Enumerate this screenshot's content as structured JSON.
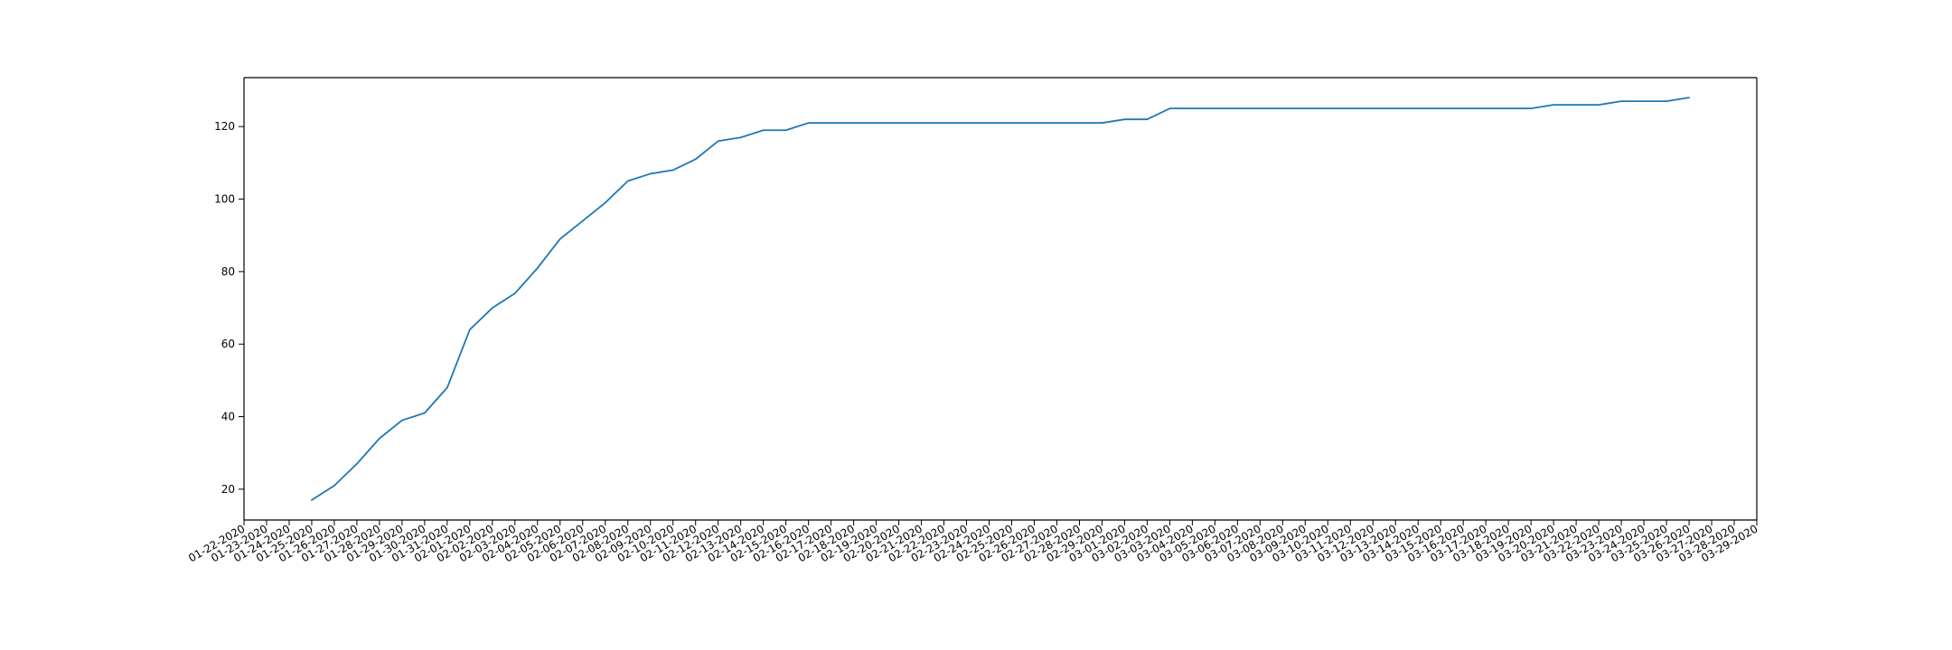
{
  "chart_data": {
    "type": "line",
    "title": "",
    "xlabel": "",
    "ylabel": "",
    "grid": false,
    "x_tick_labels": [
      "01-22-2020",
      "01-23-2020",
      "01-24-2020",
      "01-25-2020",
      "01-26-2020",
      "01-27-2020",
      "01-28-2020",
      "01-29-2020",
      "01-30-2020",
      "01-31-2020",
      "02-01-2020",
      "02-02-2020",
      "02-03-2020",
      "02-04-2020",
      "02-05-2020",
      "02-06-2020",
      "02-07-2020",
      "02-08-2020",
      "02-09-2020",
      "02-10-2020",
      "02-11-2020",
      "02-12-2020",
      "02-13-2020",
      "02-14-2020",
      "02-15-2020",
      "02-16-2020",
      "02-17-2020",
      "02-18-2020",
      "02-19-2020",
      "02-20-2020",
      "02-21-2020",
      "02-22-2020",
      "02-23-2020",
      "02-24-2020",
      "02-25-2020",
      "02-26-2020",
      "02-27-2020",
      "02-28-2020",
      "02-29-2020",
      "03-01-2020",
      "03-02-2020",
      "03-03-2020",
      "03-04-2020",
      "03-05-2020",
      "03-06-2020",
      "03-07-2020",
      "03-08-2020",
      "03-09-2020",
      "03-10-2020",
      "03-11-2020",
      "03-12-2020",
      "03-13-2020",
      "03-14-2020",
      "03-15-2020",
      "03-16-2020",
      "03-17-2020",
      "03-18-2020",
      "03-19-2020",
      "03-20-2020",
      "03-21-2020",
      "03-22-2020",
      "03-23-2020",
      "03-24-2020",
      "03-25-2020",
      "03-26-2020",
      "03-27-2020",
      "03-28-2020",
      "03-29-2020"
    ],
    "xlim": [
      "01-22-2020",
      "03-29-2020"
    ],
    "ylim": [
      11.5,
      133.5
    ],
    "y_ticks": [
      20,
      40,
      60,
      80,
      100,
      120
    ],
    "series": [
      {
        "color": "#1f77b4",
        "x": [
          "01-25-2020",
          "01-26-2020",
          "01-27-2020",
          "01-28-2020",
          "01-29-2020",
          "01-30-2020",
          "01-31-2020",
          "02-01-2020",
          "02-02-2020",
          "02-03-2020",
          "02-04-2020",
          "02-05-2020",
          "02-06-2020",
          "02-07-2020",
          "02-08-2020",
          "02-09-2020",
          "02-10-2020",
          "02-11-2020",
          "02-12-2020",
          "02-13-2020",
          "02-14-2020",
          "02-15-2020",
          "02-16-2020",
          "02-17-2020",
          "02-18-2020",
          "02-19-2020",
          "02-20-2020",
          "02-21-2020",
          "02-22-2020",
          "02-23-2020",
          "02-24-2020",
          "02-25-2020",
          "02-26-2020",
          "02-27-2020",
          "02-28-2020",
          "02-29-2020",
          "03-01-2020",
          "03-02-2020",
          "03-03-2020",
          "03-04-2020",
          "03-05-2020",
          "03-06-2020",
          "03-07-2020",
          "03-08-2020",
          "03-09-2020",
          "03-10-2020",
          "03-11-2020",
          "03-12-2020",
          "03-13-2020",
          "03-14-2020",
          "03-15-2020",
          "03-16-2020",
          "03-17-2020",
          "03-18-2020",
          "03-19-2020",
          "03-20-2020",
          "03-21-2020",
          "03-22-2020",
          "03-23-2020",
          "03-24-2020",
          "03-25-2020",
          "03-26-2020"
        ],
        "y": [
          17,
          21,
          27,
          34,
          39,
          41,
          48,
          64,
          70,
          74,
          81,
          89,
          94,
          99,
          105,
          107,
          108,
          111,
          116,
          117,
          119,
          119,
          121,
          121,
          121,
          121,
          121,
          121,
          121,
          121,
          121,
          121,
          121,
          121,
          121,
          121,
          122,
          122,
          125,
          125,
          125,
          125,
          125,
          125,
          125,
          125,
          125,
          125,
          125,
          125,
          125,
          125,
          125,
          125,
          125,
          126,
          126,
          126,
          127,
          127,
          127,
          128
        ]
      }
    ]
  }
}
